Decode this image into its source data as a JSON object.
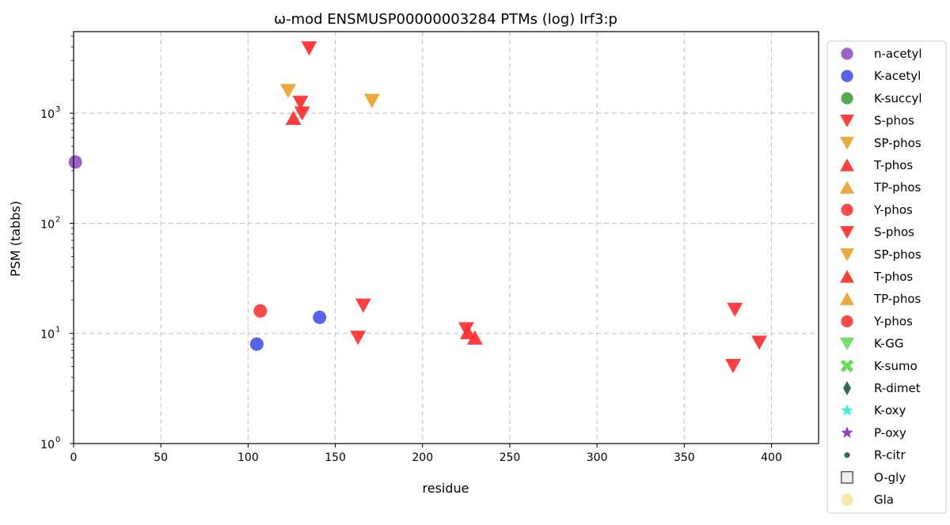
{
  "chart_data": {
    "type": "scatter",
    "title": "ω-mod ENSMUSP00000003284 PTMs (log) Irf3:p",
    "xlabel": "residue",
    "ylabel": "PSM (tabbs)",
    "xlim": [
      0,
      427
    ],
    "ylim": [
      1,
      5500
    ],
    "yscale": "log",
    "grid": true,
    "legend_position": "right-outside",
    "x_ticks": [
      0,
      50,
      100,
      150,
      200,
      250,
      300,
      350,
      400
    ],
    "y_ticks": [
      {
        "value": 1,
        "base": "10",
        "exp": "0"
      },
      {
        "value": 10,
        "base": "10",
        "exp": "1"
      },
      {
        "value": 100,
        "base": "10",
        "exp": "2"
      },
      {
        "value": 1000,
        "base": "10",
        "exp": "3"
      }
    ],
    "series": [
      {
        "name": "n-acetyl",
        "marker": "circle",
        "color": "#8e44c0",
        "points": [
          [
            1,
            360
          ]
        ]
      },
      {
        "name": "K-acetyl",
        "marker": "circle",
        "color": "#3b46e8",
        "points": [
          [
            105,
            8
          ],
          [
            141,
            14
          ]
        ]
      },
      {
        "name": "K-succyl",
        "marker": "circle",
        "color": "#3a9a2f",
        "points": []
      },
      {
        "name": "S-phos",
        "marker": "triangle-down",
        "color": "#ff2a2a",
        "points": [
          [
            135,
            3900
          ],
          [
            130,
            1250
          ],
          [
            131,
            1000
          ],
          [
            166,
            18
          ],
          [
            163,
            9.2
          ],
          [
            225,
            11
          ],
          [
            379,
            16.5
          ],
          [
            393,
            8.3
          ],
          [
            378,
            5.1
          ]
        ]
      },
      {
        "name": "SP-phos",
        "marker": "triangle-down",
        "color": "#eba02a",
        "points": [
          [
            123,
            1600
          ],
          [
            171,
            1300
          ]
        ]
      },
      {
        "name": "T-phos",
        "marker": "triangle-up",
        "color": "#ff2a2a",
        "points": [
          [
            126,
            900
          ],
          [
            226,
            10.2
          ],
          [
            230,
            9.1
          ]
        ]
      },
      {
        "name": "TP-phos",
        "marker": "triangle-up",
        "color": "#eba02a",
        "points": []
      },
      {
        "name": "Y-phos",
        "marker": "circle",
        "color": "#ff2a2a",
        "points": [
          [
            107,
            16
          ]
        ]
      },
      {
        "name": "S-phos",
        "marker": "triangle-down",
        "color": "#ff2a2a",
        "points": []
      },
      {
        "name": "SP-phos",
        "marker": "triangle-down",
        "color": "#eba02a",
        "points": []
      },
      {
        "name": "T-phos",
        "marker": "triangle-up",
        "color": "#ff2a2a",
        "points": []
      },
      {
        "name": "TP-phos",
        "marker": "triangle-up",
        "color": "#eba02a",
        "points": []
      },
      {
        "name": "Y-phos",
        "marker": "circle",
        "color": "#ff2a2a",
        "points": []
      },
      {
        "name": "K-GG",
        "marker": "triangle-down",
        "color": "#66dd55",
        "points": []
      },
      {
        "name": "K-sumo",
        "marker": "x",
        "color": "#66dd55",
        "points": []
      },
      {
        "name": "R-dimet",
        "marker": "thin-diamond",
        "color": "#2f6a4e",
        "points": []
      },
      {
        "name": "K-oxy",
        "marker": "star",
        "color": "#44eedd",
        "points": []
      },
      {
        "name": "P-oxy",
        "marker": "star",
        "color": "#8e44c0",
        "points": []
      },
      {
        "name": "R-citr",
        "marker": "small-circle",
        "color": "#2f6a4e",
        "points": []
      },
      {
        "name": "O-gly",
        "marker": "square",
        "color": "#eeeeee",
        "points": []
      },
      {
        "name": "Gla",
        "marker": "circle",
        "color": "#f5e29a",
        "points": []
      }
    ]
  }
}
